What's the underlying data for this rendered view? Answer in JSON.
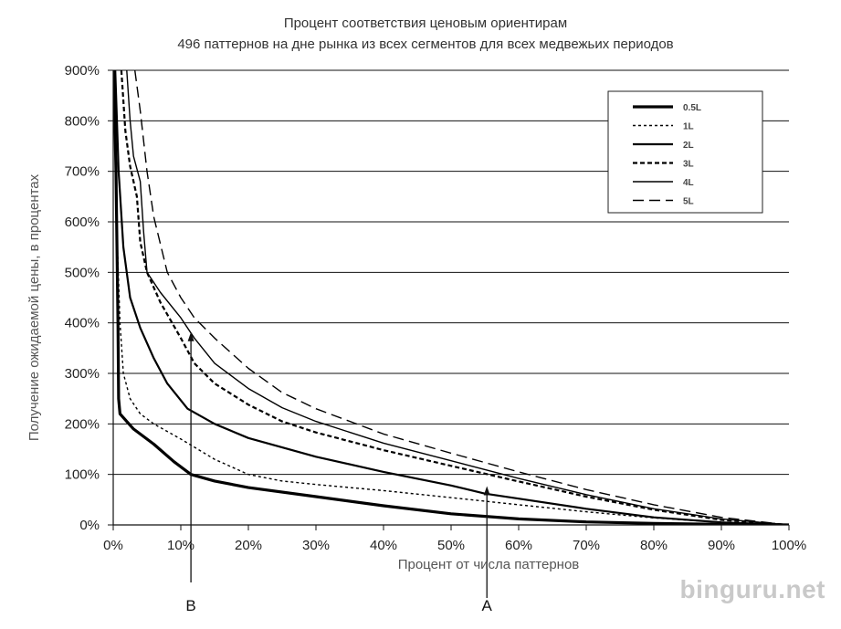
{
  "chart_data": {
    "type": "line",
    "title": [
      "Процент соответствия ценовым ориентирам",
      "496 паттернов на дне рынка из всех сегментов для всех медвежьих периодов"
    ],
    "xlabel": "Процент от числа паттернов",
    "ylabel": "Получение ожидаемой цены, в процентах",
    "xlim": [
      0,
      100
    ],
    "ylim": [
      0,
      900
    ],
    "x_ticks": [
      "0%",
      "10%",
      "20%",
      "30%",
      "40%",
      "50%",
      "60%",
      "70%",
      "80%",
      "90%",
      "100%"
    ],
    "y_ticks": [
      "0%",
      "100%",
      "200%",
      "300%",
      "400%",
      "500%",
      "600%",
      "700%",
      "800%",
      "900%"
    ],
    "grid": "horizontal",
    "legend_position": "top-right",
    "series": [
      {
        "name": "0.5L",
        "style": "thick-solid",
        "points": [
          [
            0.1,
            900
          ],
          [
            0.4,
            700
          ],
          [
            0.7,
            400
          ],
          [
            0.8,
            250
          ],
          [
            1,
            220
          ],
          [
            3,
            190
          ],
          [
            6,
            160
          ],
          [
            9,
            125
          ],
          [
            11.5,
            100
          ],
          [
            15,
            87
          ],
          [
            20,
            74
          ],
          [
            30,
            56
          ],
          [
            40,
            38
          ],
          [
            50,
            22
          ],
          [
            60,
            12
          ],
          [
            70,
            6
          ],
          [
            80,
            3
          ],
          [
            90,
            1
          ],
          [
            100,
            0
          ]
        ]
      },
      {
        "name": "1L",
        "style": "short-dash",
        "points": [
          [
            0.1,
            900
          ],
          [
            0.5,
            600
          ],
          [
            1,
            400
          ],
          [
            1.5,
            300
          ],
          [
            2.5,
            250
          ],
          [
            4,
            220
          ],
          [
            6,
            200
          ],
          [
            10,
            170
          ],
          [
            15,
            130
          ],
          [
            20,
            100
          ],
          [
            25,
            87
          ],
          [
            30,
            80
          ],
          [
            40,
            68
          ],
          [
            50,
            54
          ],
          [
            60,
            40
          ],
          [
            70,
            26
          ],
          [
            80,
            14
          ],
          [
            90,
            5
          ],
          [
            100,
            0
          ]
        ]
      },
      {
        "name": "2L",
        "style": "medium-solid",
        "points": [
          [
            0.3,
            900
          ],
          [
            0.8,
            700
          ],
          [
            1.5,
            550
          ],
          [
            2.5,
            450
          ],
          [
            4,
            390
          ],
          [
            6,
            330
          ],
          [
            8,
            280
          ],
          [
            11,
            230
          ],
          [
            15,
            200
          ],
          [
            20,
            172
          ],
          [
            30,
            135
          ],
          [
            40,
            105
          ],
          [
            50,
            78
          ],
          [
            55,
            62
          ],
          [
            60,
            52
          ],
          [
            70,
            32
          ],
          [
            80,
            15
          ],
          [
            90,
            5
          ],
          [
            100,
            0
          ]
        ]
      },
      {
        "name": "3L",
        "style": "medium-dash",
        "points": [
          [
            1.2,
            900
          ],
          [
            1.8,
            780
          ],
          [
            2.5,
            710
          ],
          [
            3.5,
            650
          ],
          [
            4,
            560
          ],
          [
            5,
            500
          ],
          [
            7,
            440
          ],
          [
            10,
            370
          ],
          [
            12,
            320
          ],
          [
            15,
            280
          ],
          [
            20,
            238
          ],
          [
            25,
            205
          ],
          [
            30,
            183
          ],
          [
            40,
            148
          ],
          [
            50,
            117
          ],
          [
            60,
            86
          ],
          [
            70,
            56
          ],
          [
            80,
            30
          ],
          [
            90,
            10
          ],
          [
            100,
            0
          ]
        ]
      },
      {
        "name": "4L",
        "style": "thin-solid",
        "points": [
          [
            2,
            900
          ],
          [
            2.5,
            800
          ],
          [
            3,
            730
          ],
          [
            4,
            680
          ],
          [
            4.5,
            580
          ],
          [
            5,
            500
          ],
          [
            7,
            460
          ],
          [
            10,
            410
          ],
          [
            12,
            370
          ],
          [
            15,
            320
          ],
          [
            20,
            270
          ],
          [
            25,
            232
          ],
          [
            30,
            205
          ],
          [
            40,
            162
          ],
          [
            50,
            127
          ],
          [
            60,
            92
          ],
          [
            70,
            60
          ],
          [
            80,
            32
          ],
          [
            90,
            12
          ],
          [
            100,
            0
          ]
        ]
      },
      {
        "name": "5L",
        "style": "long-dash",
        "points": [
          [
            3.2,
            900
          ],
          [
            4,
            820
          ],
          [
            5,
            700
          ],
          [
            6,
            610
          ],
          [
            8,
            500
          ],
          [
            10,
            450
          ],
          [
            12,
            410
          ],
          [
            15,
            370
          ],
          [
            20,
            310
          ],
          [
            25,
            262
          ],
          [
            30,
            230
          ],
          [
            40,
            180
          ],
          [
            50,
            142
          ],
          [
            60,
            105
          ],
          [
            70,
            70
          ],
          [
            80,
            40
          ],
          [
            90,
            15
          ],
          [
            100,
            0
          ]
        ]
      }
    ],
    "annotations": [
      {
        "label": "B",
        "x": 11.5,
        "arrow_to_y": 380,
        "direction": "up"
      },
      {
        "label": "A",
        "x": 55.3,
        "arrow_to_y": 75,
        "direction": "up"
      }
    ]
  },
  "watermark": "binguru.net"
}
